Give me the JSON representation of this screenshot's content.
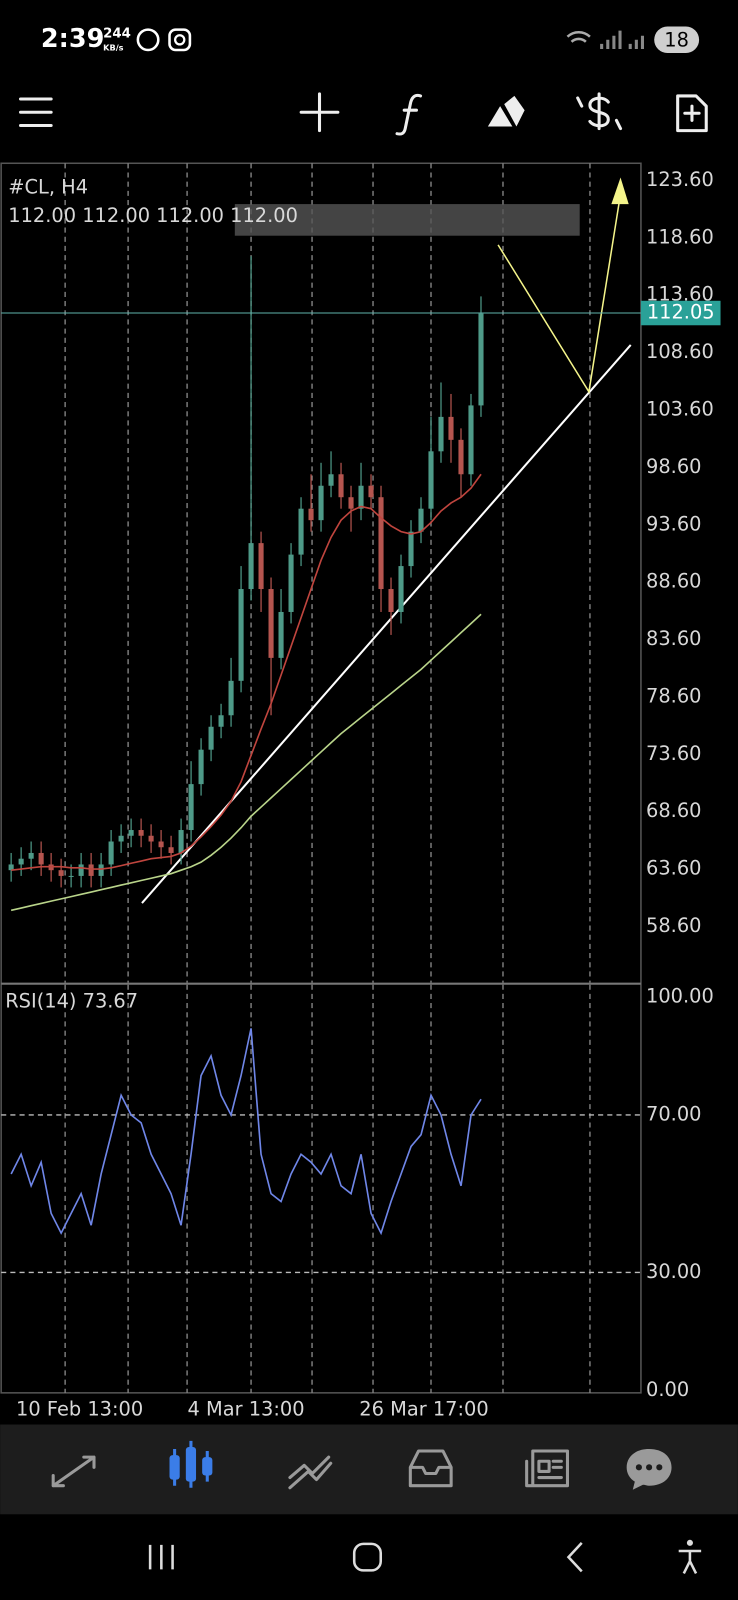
{
  "status_bar": {
    "time": "2:39",
    "speed": "244",
    "speed_unit": "KB/s",
    "battery": "18"
  },
  "chart_data": [
    {
      "type": "candlestick",
      "title": "#CL, H4",
      "subtitle": "112.00 112.00 112.00 112.00",
      "current_price": 112.05,
      "up_color": "#4e9a88",
      "down_color": "#b5554f",
      "xlim": [
        -1,
        63
      ],
      "ylim": [
        53.7,
        125.1
      ],
      "xticks": [
        {
          "value": 6.85,
          "label": "10 Feb 13:00"
        },
        {
          "value": 23.5,
          "label": "4 Mar 13:00"
        },
        {
          "value": 41.3,
          "label": "26 Mar 17:00"
        }
      ],
      "xgrid": [
        5.4,
        11.7,
        17.6,
        24,
        30.1,
        36.2,
        42,
        49.2,
        57.9
      ],
      "yticks": [
        {
          "value": 123.6,
          "label": "123.60"
        },
        {
          "value": 118.6,
          "label": "118.60"
        },
        {
          "value": 113.6,
          "label": "113.60"
        },
        {
          "value": 108.6,
          "label": "108.60"
        },
        {
          "value": 103.6,
          "label": "103.60"
        },
        {
          "value": 98.6,
          "label": "98.60"
        },
        {
          "value": 93.6,
          "label": "93.60"
        },
        {
          "value": 88.6,
          "label": "88.60"
        },
        {
          "value": 83.6,
          "label": "83.60"
        },
        {
          "value": 78.6,
          "label": "78.60"
        },
        {
          "value": 73.6,
          "label": "73.60"
        },
        {
          "value": 68.6,
          "label": "68.60"
        },
        {
          "value": 63.6,
          "label": "63.60"
        },
        {
          "value": 58.6,
          "label": "58.60"
        }
      ],
      "ohlc": [
        [
          63.5,
          65,
          62.5,
          64
        ],
        [
          64,
          65.5,
          63,
          64.5
        ],
        [
          64.5,
          66,
          63.5,
          65
        ],
        [
          65,
          66,
          63,
          64
        ],
        [
          64,
          65,
          62.5,
          63.5
        ],
        [
          63.5,
          64.5,
          62,
          63
        ],
        [
          63,
          64,
          62,
          63
        ],
        [
          63,
          65,
          62,
          64
        ],
        [
          64,
          65,
          62,
          63
        ],
        [
          63,
          65,
          62,
          64
        ],
        [
          64,
          67,
          63,
          66
        ],
        [
          66,
          67.5,
          65,
          66.5
        ],
        [
          66.5,
          68,
          65.5,
          67
        ],
        [
          67,
          68,
          65.5,
          66.5
        ],
        [
          66.5,
          67.5,
          65,
          66
        ],
        [
          66,
          67,
          64.5,
          65.5
        ],
        [
          65.5,
          66.5,
          64,
          65
        ],
        [
          65,
          68,
          64,
          67
        ],
        [
          67,
          73,
          66,
          71
        ],
        [
          71,
          75,
          70,
          74
        ],
        [
          74,
          77,
          73,
          76
        ],
        [
          76,
          78,
          75,
          77
        ],
        [
          77,
          82,
          76,
          80
        ],
        [
          80,
          90,
          79,
          88
        ],
        [
          88,
          117,
          87,
          92
        ],
        [
          92,
          93,
          86,
          88
        ],
        [
          88,
          89,
          77,
          82
        ],
        [
          82,
          88,
          81,
          86
        ],
        [
          86,
          92,
          85,
          91
        ],
        [
          91,
          96,
          90,
          95
        ],
        [
          95,
          98,
          93,
          94
        ],
        [
          94,
          99,
          93,
          97
        ],
        [
          97,
          100,
          96,
          98
        ],
        [
          98,
          99,
          95,
          96
        ],
        [
          96,
          97,
          93,
          95
        ],
        [
          95,
          99,
          94,
          97
        ],
        [
          97,
          98,
          95,
          96
        ],
        [
          96,
          97,
          86,
          88
        ],
        [
          88,
          89,
          84,
          86
        ],
        [
          86,
          91,
          85,
          90
        ],
        [
          90,
          94,
          89,
          93
        ],
        [
          93,
          96,
          92,
          95
        ],
        [
          95,
          103,
          94,
          100
        ],
        [
          100,
          106,
          99,
          103
        ],
        [
          103,
          105,
          99,
          101
        ],
        [
          101,
          102,
          96,
          98
        ],
        [
          98,
          105,
          97,
          104
        ],
        [
          104,
          113.5,
          103,
          112
        ]
      ],
      "series": [
        {
          "color": "#c0453e",
          "values": [
            63.5,
            63.6,
            63.7,
            63.8,
            63.8,
            63.8,
            63.7,
            63.7,
            63.6,
            63.6,
            63.7,
            63.9,
            64.1,
            64.3,
            64.5,
            64.6,
            64.7,
            65,
            65.6,
            66.4,
            67.3,
            68.3,
            69.5,
            71.2,
            73.5,
            75.8,
            78,
            80.5,
            83,
            85.5,
            88,
            90.5,
            92.5,
            94,
            94.8,
            95.2,
            95,
            94.2,
            93.5,
            93,
            92.8,
            93,
            93.8,
            94.8,
            95.5,
            96,
            96.8,
            98
          ]
        },
        {
          "color": "#b9d48a",
          "values": [
            60,
            60.2,
            60.4,
            60.6,
            60.8,
            61,
            61.2,
            61.4,
            61.6,
            61.8,
            62,
            62.2,
            62.4,
            62.6,
            62.8,
            63,
            63.2,
            63.5,
            63.8,
            64.2,
            64.8,
            65.5,
            66.3,
            67.2,
            68.2,
            69,
            69.8,
            70.6,
            71.4,
            72.2,
            73,
            73.8,
            74.6,
            75.4,
            76.1,
            76.8,
            77.5,
            78.2,
            78.9,
            79.6,
            80.3,
            81,
            81.8,
            82.6,
            83.4,
            84.2,
            85,
            85.8
          ]
        }
      ]
    },
    {
      "type": "line",
      "title": "RSI(14) 73.67",
      "xlim": [
        -1,
        63
      ],
      "ylim": [
        -0.6,
        103.1
      ],
      "yticks": [
        {
          "value": 100,
          "label": "100.00"
        },
        {
          "value": 70,
          "label": "70.00"
        },
        {
          "value": 30,
          "label": "30.00"
        },
        {
          "value": 0,
          "label": "0.00"
        }
      ],
      "levels": [
        70,
        30
      ],
      "series": [
        {
          "color": "#6f86e8",
          "values": [
            55,
            60,
            52,
            58,
            45,
            40,
            45,
            50,
            42,
            55,
            65,
            75,
            70,
            68,
            60,
            55,
            50,
            42,
            60,
            80,
            85,
            75,
            70,
            80,
            92,
            60,
            50,
            48,
            55,
            60,
            58,
            55,
            60,
            52,
            50,
            60,
            45,
            40,
            48,
            55,
            62,
            65,
            75,
            70,
            60,
            52,
            70,
            74
          ]
        }
      ]
    }
  ]
}
